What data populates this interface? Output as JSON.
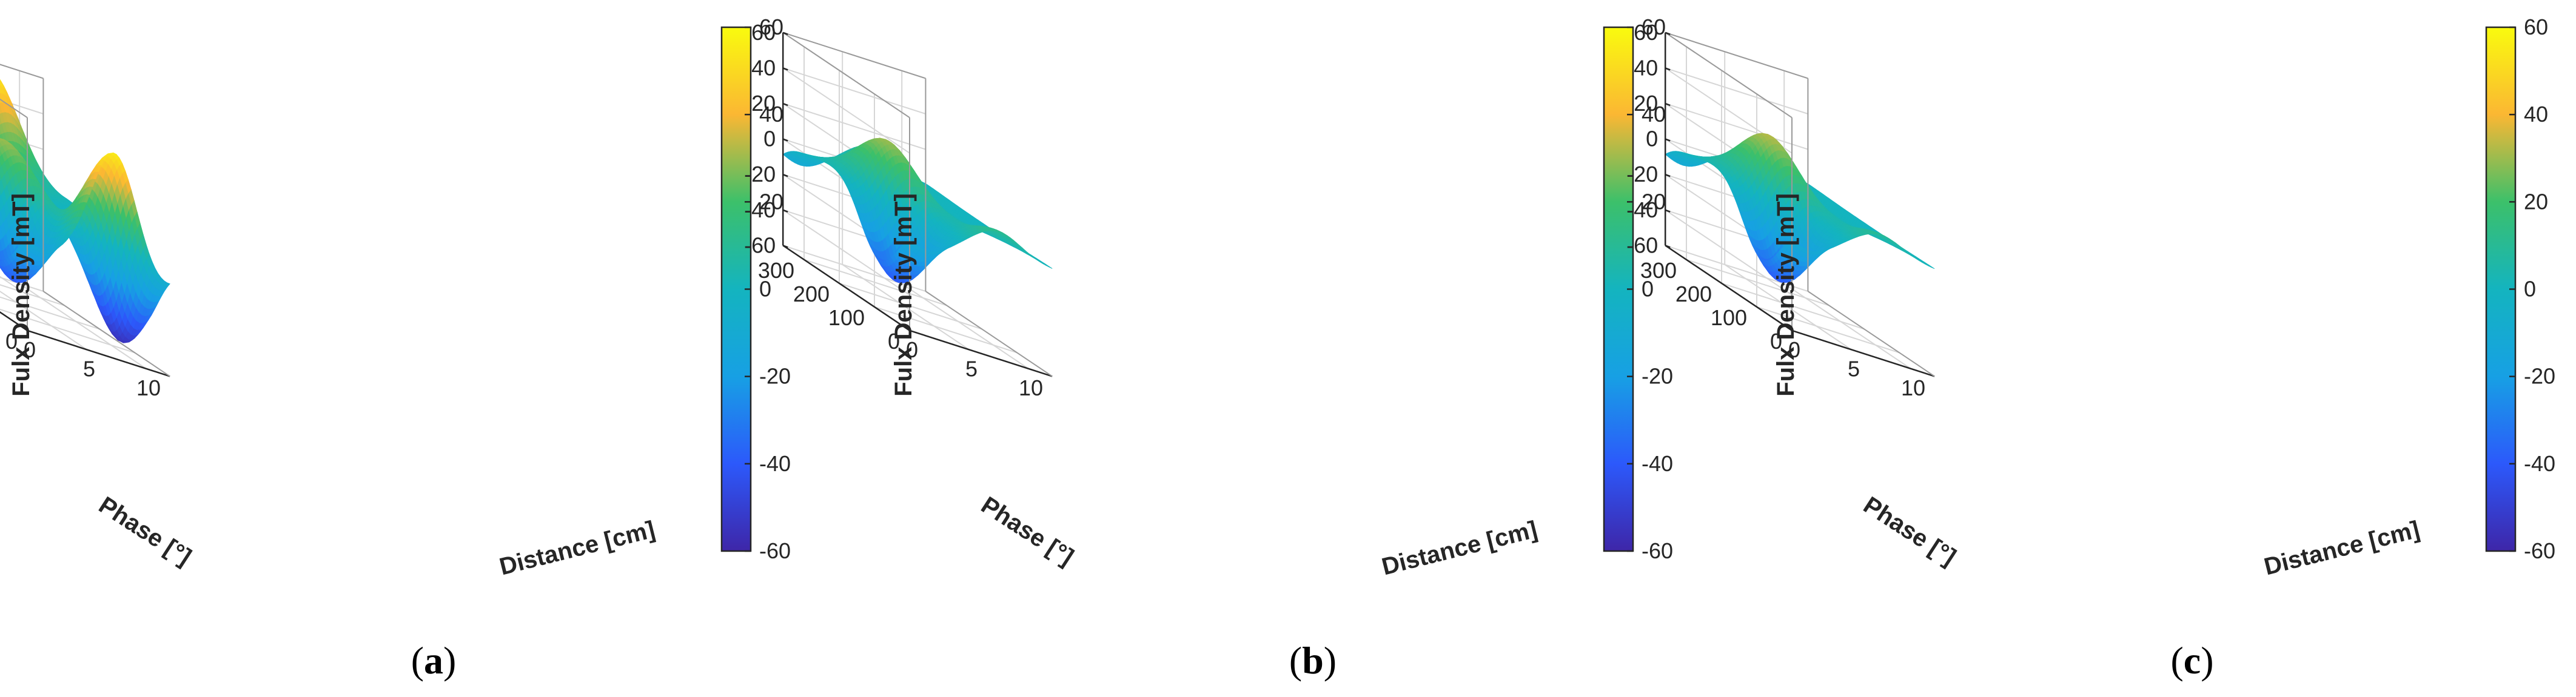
{
  "colorbar": {
    "min": -60,
    "max": 60,
    "ticks": [
      "60",
      "40",
      "20",
      "0",
      "-20",
      "-40",
      "-60"
    ],
    "colors": [
      "#f9fb0e",
      "#fbb733",
      "#3cc06a",
      "#14b4bf",
      "#17a0e4",
      "#2c59fb",
      "#3e26a8"
    ]
  },
  "axes": {
    "zlabel": "Fulx Density [mT]",
    "ylabel": "Phase [°]",
    "xlabel": "Distance [cm]",
    "zticks": [
      "60",
      "40",
      "20",
      "0",
      "-20",
      "-40",
      "-60"
    ],
    "yticks": [
      "300",
      "200",
      "100",
      "0"
    ],
    "xticks": [
      "0",
      "5",
      "10"
    ]
  },
  "chart_data": [
    {
      "type": "surface",
      "caption": "a",
      "title": "",
      "xlabel": "Distance [cm]",
      "ylabel": "Phase [°]",
      "zlabel": "Fulx Density [mT]",
      "xlim": [
        0,
        12
      ],
      "ylim": [
        0,
        360
      ],
      "zlim": [
        -60,
        60
      ],
      "clim": [
        -60,
        60
      ],
      "peaks": [
        {
          "x": 3.5,
          "phase": 180,
          "z": 35
        },
        {
          "x": 1.5,
          "phase": 90,
          "z": -45
        },
        {
          "x": 7.5,
          "phase": 360,
          "z": 60
        },
        {
          "x": 10.5,
          "phase": 90,
          "z": -60
        }
      ]
    },
    {
      "type": "surface",
      "caption": "b",
      "title": "",
      "xlabel": "Distance [cm]",
      "ylabel": "Phase [°]",
      "zlabel": "Fulx Density [mT]",
      "xlim": [
        0,
        12
      ],
      "ylim": [
        0,
        360
      ],
      "zlim": [
        -60,
        60
      ],
      "clim": [
        -60,
        60
      ],
      "peaks": [
        {
          "x": 3.5,
          "phase": 180,
          "z": 35
        },
        {
          "x": 1.5,
          "phase": 90,
          "z": -45
        },
        {
          "x": 7.5,
          "phase": 360,
          "z": 12
        }
      ]
    },
    {
      "type": "surface",
      "caption": "c",
      "title": "",
      "xlabel": "Distance [cm]",
      "ylabel": "Phase [°]",
      "zlabel": "Fulx Density [mT]",
      "xlim": [
        0,
        12
      ],
      "ylim": [
        0,
        360
      ],
      "zlim": [
        -60,
        60
      ],
      "clim": [
        -60,
        60
      ],
      "peaks": [
        {
          "x": 3.5,
          "phase": 180,
          "z": 38
        },
        {
          "x": 1.5,
          "phase": 90,
          "z": -45
        },
        {
          "x": 7.5,
          "phase": 360,
          "z": 10
        }
      ]
    }
  ]
}
